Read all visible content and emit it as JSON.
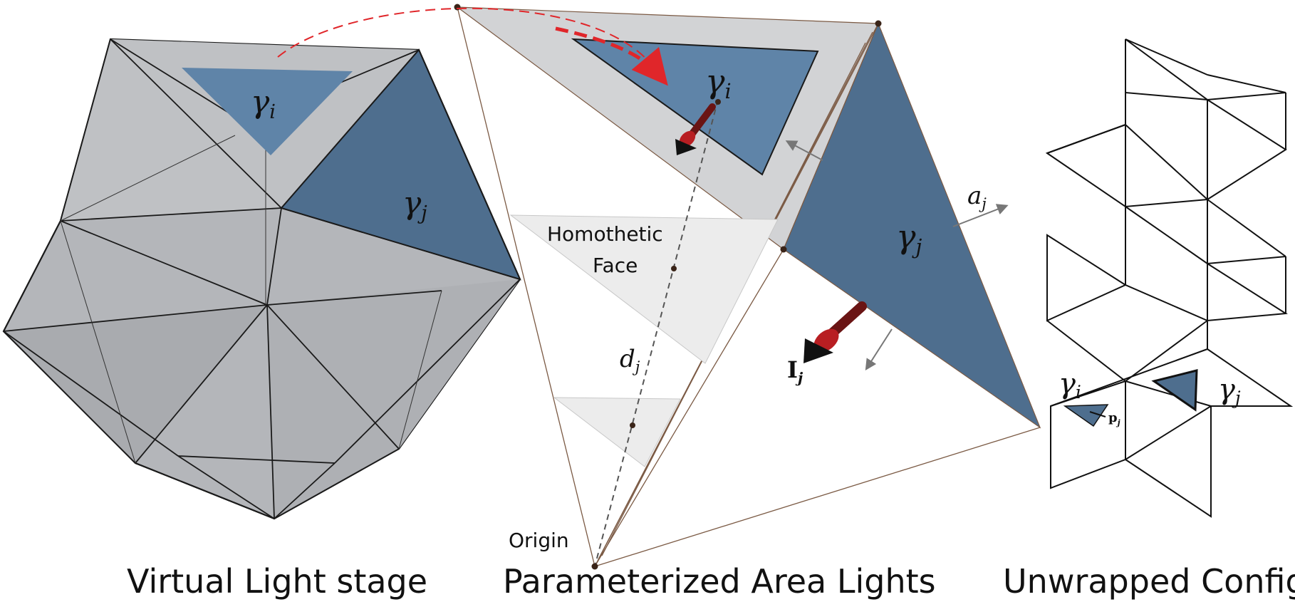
{
  "captions": {
    "left": "Virtual Light stage",
    "middle": "Parameterized Area Lights",
    "right": "Unwrapped Config."
  },
  "annotations": {
    "homothetic_line1": "Homothetic",
    "homothetic_line2": "Face",
    "origin": "Origin"
  },
  "symbols": {
    "gamma": "γ",
    "i": "i",
    "j": "j",
    "a": "a",
    "d": "d",
    "I": "I",
    "p": "p"
  },
  "colors": {
    "face_light_blue": "#5f84a8",
    "face_dark_blue": "#4e6e8e",
    "stage_gray": "#b4b6ba",
    "pyramid_gray": "#d2d3d5",
    "homothetic_gray": "#ececec",
    "arrow_red": "#e0262a",
    "dark_red": "#6a1414"
  }
}
